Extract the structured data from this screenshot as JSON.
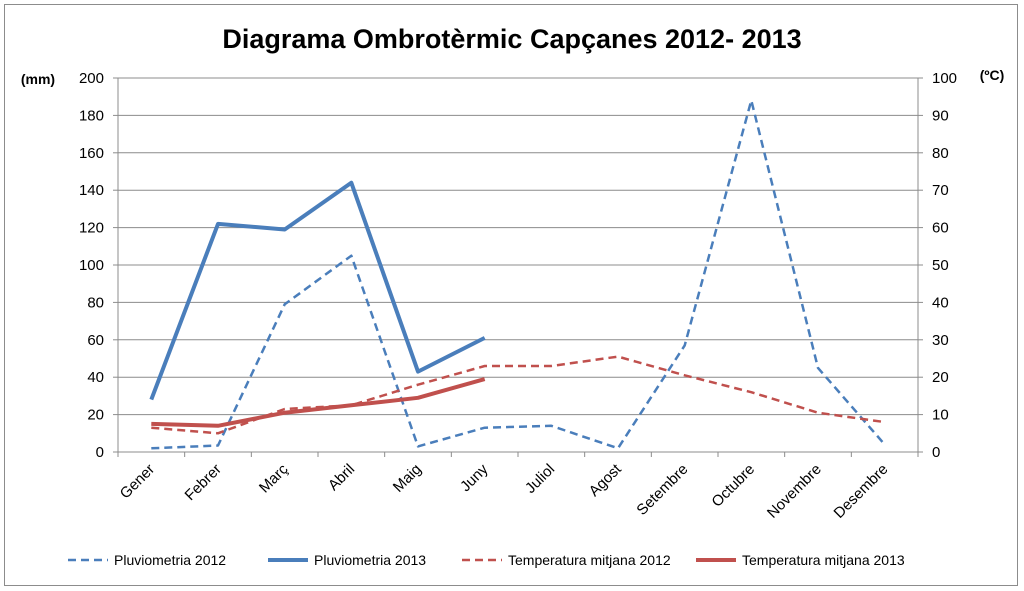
{
  "chart_data": {
    "type": "line",
    "title": "Diagrama Ombrotèrmic  Capçanes  2012- 2013",
    "ylabel_left": "(mm)",
    "ylabel_right": "(ºC)",
    "ylim_left": [
      0,
      200
    ],
    "ylim_right": [
      0,
      100
    ],
    "yticks_left": [
      "0",
      "20",
      "40",
      "60",
      "80",
      "100",
      "120",
      "140",
      "160",
      "180",
      "200"
    ],
    "yticks_right": [
      "0",
      "10",
      "20",
      "30",
      "40",
      "50",
      "60",
      "70",
      "80",
      "90",
      "100"
    ],
    "grid": true,
    "legend_position": "bottom",
    "categories": [
      "Gener",
      "Febrer",
      "Març",
      "Abril",
      "Maig",
      "Juny",
      "Juliol",
      "Agost",
      "Setembre",
      "Octubre",
      "Novembre",
      "Desembre"
    ],
    "series": [
      {
        "name": "Pluviometria 2012",
        "axis": "left",
        "style": "dashed",
        "color": "#4a7ebb",
        "values": [
          2,
          3.5,
          79,
          105,
          3,
          13,
          14,
          2,
          57,
          188,
          45,
          4
        ]
      },
      {
        "name": "Pluviometria 2013",
        "axis": "left",
        "style": "solid",
        "color": "#4a7ebb",
        "values": [
          28,
          122,
          119,
          144,
          43,
          61,
          null,
          null,
          null,
          null,
          null,
          null
        ]
      },
      {
        "name": "Temperatura mitjana 2012",
        "axis": "right",
        "style": "dashed",
        "color": "#c0504d",
        "values": [
          6.5,
          5,
          11.5,
          12.5,
          18,
          23,
          23,
          25.5,
          20.5,
          16,
          10.5,
          8
        ]
      },
      {
        "name": "Temperatura mitjana 2013",
        "axis": "right",
        "style": "solid",
        "color": "#c0504d",
        "values": [
          7.5,
          7,
          10.5,
          12.5,
          14.5,
          19.5,
          null,
          null,
          null,
          null,
          null,
          null
        ]
      }
    ]
  }
}
